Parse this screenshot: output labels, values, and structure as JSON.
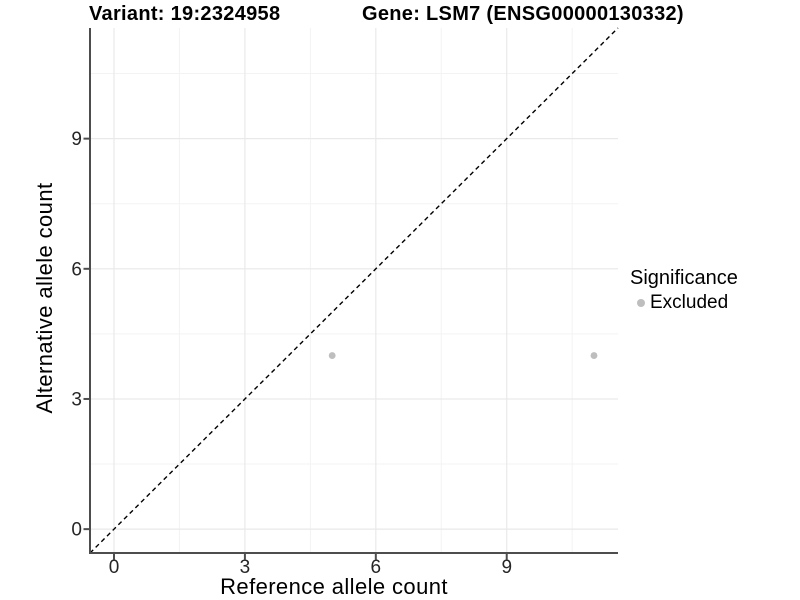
{
  "chart_data": {
    "type": "scatter",
    "title_left": "Variant: 19:2324958",
    "title_right": "Gene: LSM7 (ENSG00000130332)",
    "xlabel": "Reference allele count",
    "ylabel": "Alternative allele count",
    "xlim": [
      -0.55,
      11.55
    ],
    "ylim": [
      -0.55,
      11.55
    ],
    "xticks": [
      0,
      3,
      6,
      9
    ],
    "yticks": [
      0,
      3,
      6,
      9
    ],
    "minor_gridlines_x": [
      1.5,
      4.5,
      7.5,
      10.5
    ],
    "minor_gridlines_y": [
      1.5,
      4.5,
      7.5,
      10.5
    ],
    "grid": "major+minor",
    "identity_line": {
      "slope": 1,
      "intercept": 0,
      "style": "dashed",
      "color": "#000000"
    },
    "series": [
      {
        "name": "Excluded",
        "color": "#bebebe",
        "marker": "circle",
        "points": [
          {
            "x": 5,
            "y": 4
          },
          {
            "x": 11,
            "y": 4
          }
        ]
      }
    ],
    "legend": {
      "title": "Significance",
      "position": "right",
      "entries": [
        {
          "label": "Excluded",
          "color": "#bebebe"
        }
      ]
    }
  },
  "style": {
    "background": "#ffffff",
    "grid_major_color": "#e9e9e9",
    "grid_minor_color": "#f3f3f3",
    "axis_line_color": "#4d4d4d",
    "tick_label_color": "#262626",
    "point_color": "#bebebe"
  }
}
